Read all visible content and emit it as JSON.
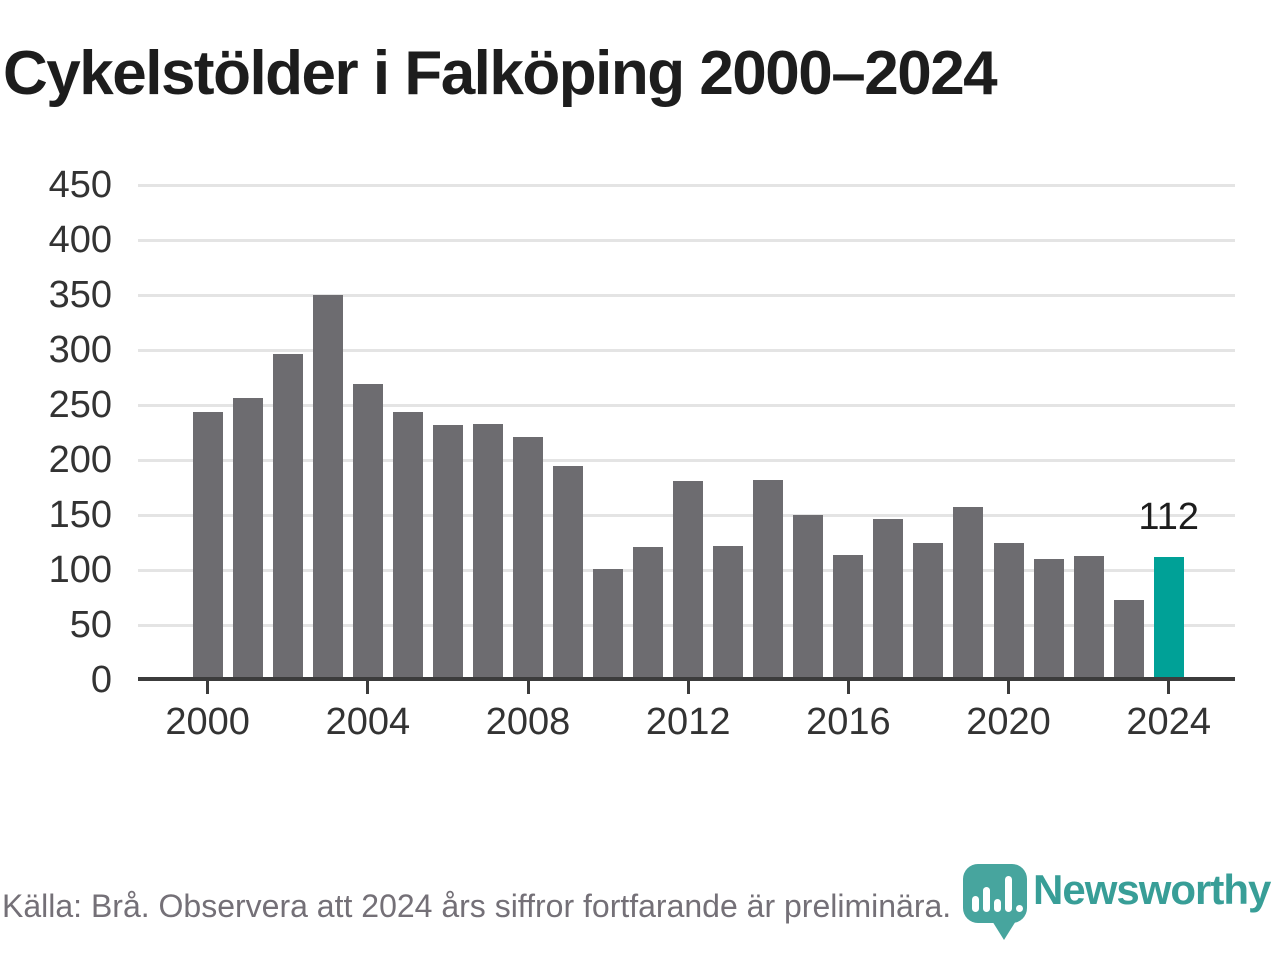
{
  "title": "Cykelstölder i Falköping 2000–2024",
  "footer": {
    "source_note": "Källa: Brå. Observera att 2024 års siffror fortfarande är preliminära.",
    "brand": "Newsworthy"
  },
  "colors": {
    "title_text": "#1d1d1d",
    "tick_text": "#333333",
    "bar": "#6d6c70",
    "highlight": "#00a197",
    "grid": "#e4e4e4",
    "axis": "#3c3c3c",
    "footer_text": "#747077",
    "logo_teal": "#47a59e",
    "brand_teal": "#389e97"
  },
  "chart_data": {
    "type": "bar",
    "title": "Cykelstölder i Falköping 2000–2024",
    "series_name": "Cykelstölder",
    "x": [
      2000,
      2001,
      2002,
      2003,
      2004,
      2005,
      2006,
      2007,
      2008,
      2009,
      2010,
      2011,
      2012,
      2013,
      2014,
      2015,
      2016,
      2017,
      2018,
      2019,
      2020,
      2021,
      2022,
      2023,
      2024
    ],
    "values": [
      244,
      256,
      296,
      350,
      269,
      244,
      232,
      233,
      221,
      195,
      101,
      121,
      181,
      122,
      182,
      150,
      114,
      146,
      125,
      157,
      125,
      110,
      113,
      73,
      112
    ],
    "highlight": {
      "year": 2024,
      "value": 112,
      "label": "112"
    },
    "yticks": [
      0,
      50,
      100,
      150,
      200,
      250,
      300,
      350,
      400,
      450
    ],
    "xticks": [
      2000,
      2004,
      2008,
      2012,
      2016,
      2020,
      2024
    ],
    "ylim": [
      0,
      450
    ],
    "grid": true,
    "legend": false
  }
}
